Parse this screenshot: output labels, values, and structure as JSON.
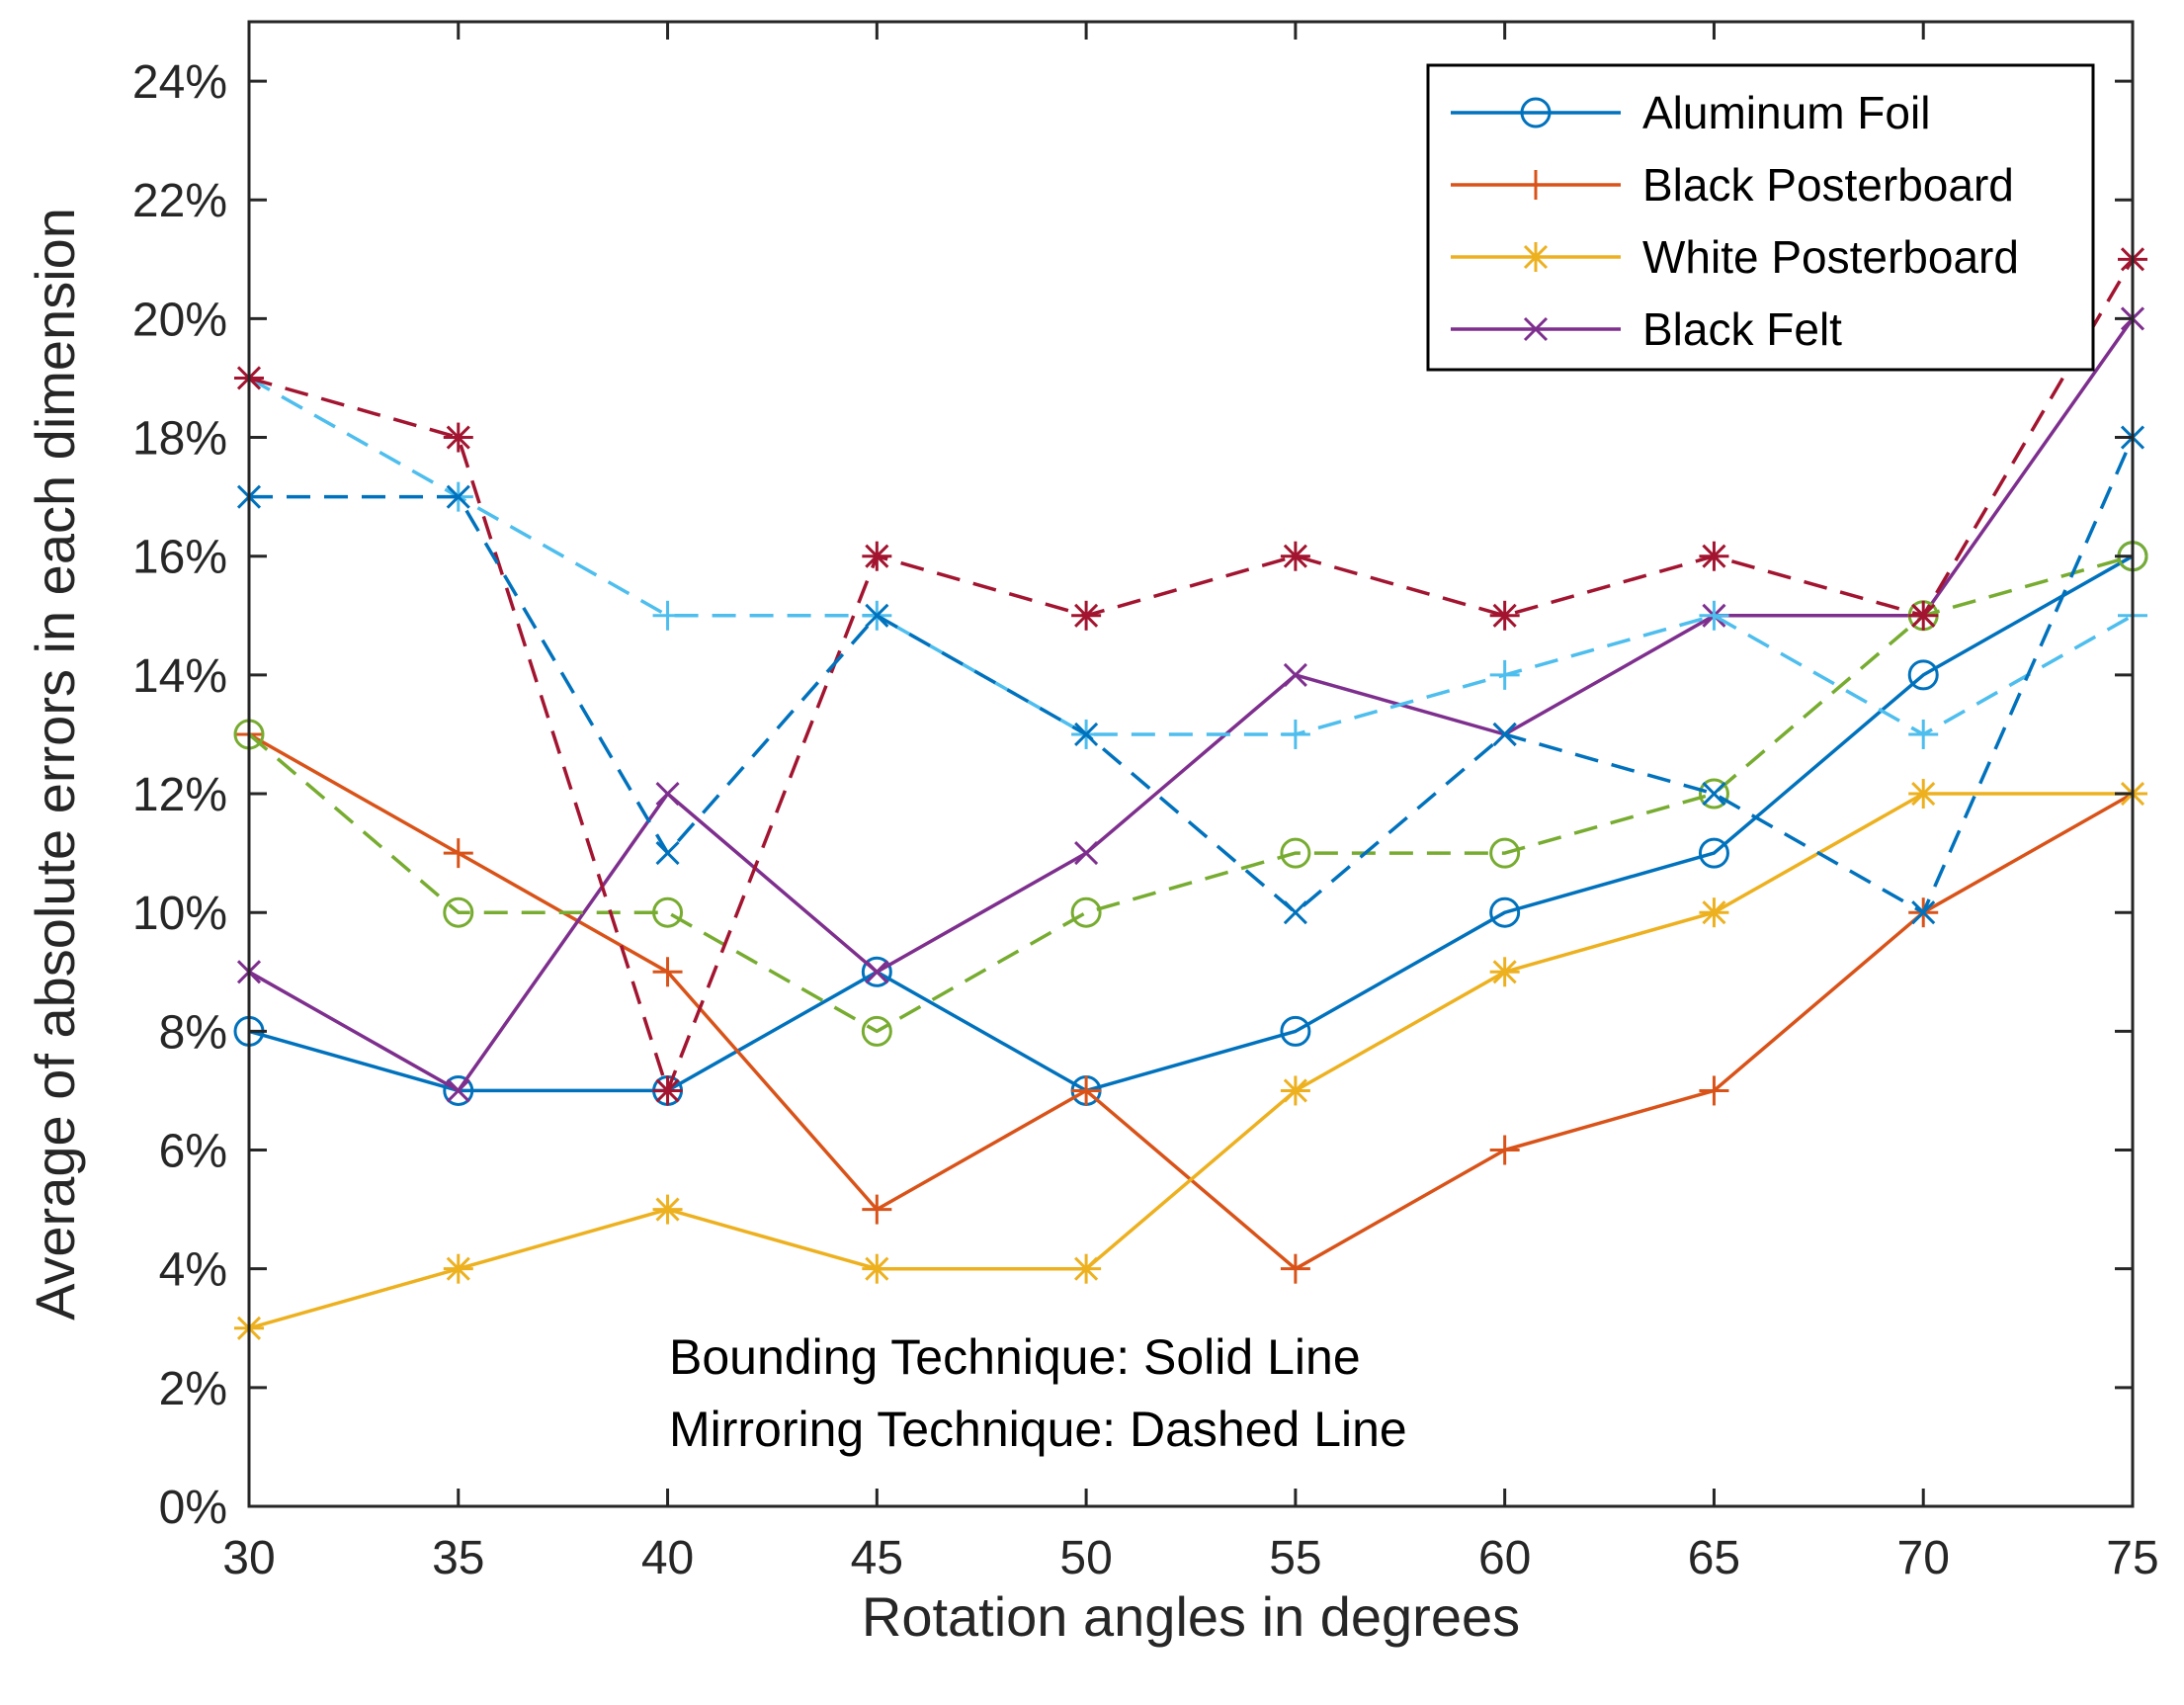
{
  "chart_data": {
    "type": "line",
    "title": "",
    "xlabel": "Rotation angles in degrees",
    "ylabel": "Average of absolute errors in each dimension",
    "x": [
      30,
      35,
      40,
      45,
      50,
      55,
      60,
      65,
      70,
      75
    ],
    "xlim": [
      30,
      75
    ],
    "ylim": [
      0,
      25
    ],
    "x_ticks": [
      {
        "value": 30,
        "label": "30"
      },
      {
        "value": 35,
        "label": "35"
      },
      {
        "value": 40,
        "label": "40"
      },
      {
        "value": 45,
        "label": "45"
      },
      {
        "value": 50,
        "label": "50"
      },
      {
        "value": 55,
        "label": "55"
      },
      {
        "value": 60,
        "label": "60"
      },
      {
        "value": 65,
        "label": "65"
      },
      {
        "value": 70,
        "label": "70"
      },
      {
        "value": 75,
        "label": "75"
      }
    ],
    "y_ticks": [
      {
        "value": 0,
        "label": "0%"
      },
      {
        "value": 2,
        "label": "2%"
      },
      {
        "value": 4,
        "label": "4%"
      },
      {
        "value": 6,
        "label": "6%"
      },
      {
        "value": 8,
        "label": "8%"
      },
      {
        "value": 10,
        "label": "10%"
      },
      {
        "value": 12,
        "label": "12%"
      },
      {
        "value": 14,
        "label": "14%"
      },
      {
        "value": 16,
        "label": "16%"
      },
      {
        "value": 18,
        "label": "18%"
      },
      {
        "value": 20,
        "label": "20%"
      },
      {
        "value": 22,
        "label": "22%"
      },
      {
        "value": 24,
        "label": "24%"
      }
    ],
    "grid": false,
    "legend_position": "top-right",
    "series": [
      {
        "name": "Aluminum Foil",
        "technique": "Bounding",
        "style": "solid",
        "marker": "circle",
        "color": "#0072BD",
        "in_legend": true,
        "values": [
          8,
          7,
          7,
          9,
          7,
          8,
          10,
          11,
          14,
          16
        ]
      },
      {
        "name": "Black Posterboard",
        "technique": "Bounding",
        "style": "solid",
        "marker": "plus",
        "color": "#D95319",
        "in_legend": true,
        "values": [
          13,
          11,
          9,
          5,
          7,
          4,
          6,
          7,
          10,
          12
        ]
      },
      {
        "name": "White Posterboard",
        "technique": "Bounding",
        "style": "solid",
        "marker": "asterisk",
        "color": "#EDB120",
        "in_legend": true,
        "values": [
          3,
          4,
          5,
          4,
          4,
          7,
          9,
          10,
          12,
          12
        ]
      },
      {
        "name": "Black Felt",
        "technique": "Bounding",
        "style": "solid",
        "marker": "x",
        "color": "#7E2F8E",
        "in_legend": true,
        "values": [
          9,
          7,
          12,
          9,
          11,
          14,
          13,
          15,
          15,
          20
        ]
      },
      {
        "name": "Aluminum Foil",
        "technique": "Mirroring",
        "style": "dashed",
        "marker": "circle",
        "color": "#77AC30",
        "in_legend": false,
        "values": [
          13,
          10,
          10,
          8,
          10,
          11,
          11,
          12,
          15,
          16
        ]
      },
      {
        "name": "Black Posterboard",
        "technique": "Mirroring",
        "style": "dashed",
        "marker": "plus",
        "color": "#4DBEEE",
        "in_legend": false,
        "values": [
          19,
          17,
          15,
          15,
          13,
          13,
          14,
          15,
          13,
          15
        ]
      },
      {
        "name": "White Posterboard",
        "technique": "Mirroring",
        "style": "dashed",
        "marker": "asterisk",
        "color": "#A2142F",
        "in_legend": false,
        "values": [
          19,
          18,
          7,
          16,
          15,
          16,
          15,
          16,
          15,
          21
        ]
      },
      {
        "name": "Black Felt",
        "technique": "Mirroring",
        "style": "dashed",
        "marker": "x",
        "color": "#0072BD",
        "in_legend": false,
        "values": [
          17,
          17,
          11,
          15,
          13,
          10,
          13,
          12,
          10,
          18
        ]
      }
    ],
    "annotations": [
      "Bounding Technique: Solid Line",
      "Mirroring Technique: Dashed Line"
    ]
  }
}
